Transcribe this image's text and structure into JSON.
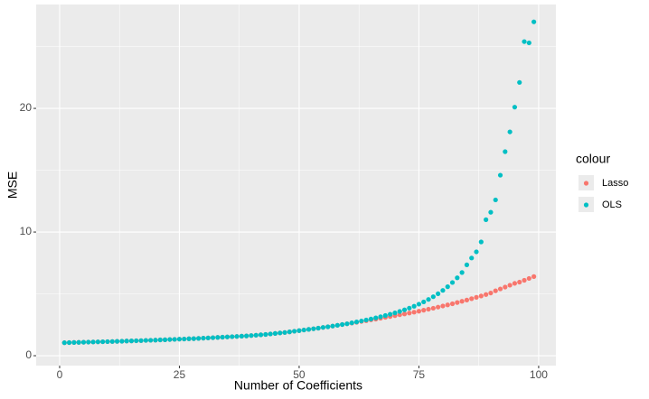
{
  "chart_data": {
    "type": "scatter",
    "x_label": "Number of Coefficients",
    "y_label": "MSE",
    "legend_title": "colour",
    "x": [
      1,
      2,
      3,
      4,
      5,
      6,
      7,
      8,
      9,
      10,
      11,
      12,
      13,
      14,
      15,
      16,
      17,
      18,
      19,
      20,
      21,
      22,
      23,
      24,
      25,
      26,
      27,
      28,
      29,
      30,
      31,
      32,
      33,
      34,
      35,
      36,
      37,
      38,
      39,
      40,
      41,
      42,
      43,
      44,
      45,
      46,
      47,
      48,
      49,
      50,
      51,
      52,
      53,
      54,
      55,
      56,
      57,
      58,
      59,
      60,
      61,
      62,
      63,
      64,
      65,
      66,
      67,
      68,
      69,
      70,
      71,
      72,
      73,
      74,
      75,
      76,
      77,
      78,
      79,
      80,
      81,
      82,
      83,
      84,
      85,
      86,
      87,
      88,
      89,
      90,
      91,
      92,
      93,
      94,
      95,
      96,
      97,
      98,
      99
    ],
    "series": [
      {
        "name": "Lasso",
        "color": "#F8766D",
        "values": [
          1.05,
          1.06,
          1.07,
          1.08,
          1.09,
          1.1,
          1.11,
          1.12,
          1.13,
          1.14,
          1.15,
          1.16,
          1.17,
          1.19,
          1.2,
          1.21,
          1.22,
          1.24,
          1.25,
          1.26,
          1.28,
          1.29,
          1.31,
          1.32,
          1.34,
          1.35,
          1.37,
          1.38,
          1.4,
          1.42,
          1.44,
          1.46,
          1.48,
          1.5,
          1.52,
          1.54,
          1.56,
          1.58,
          1.6,
          1.63,
          1.66,
          1.69,
          1.72,
          1.76,
          1.8,
          1.84,
          1.88,
          1.93,
          1.98,
          2.03,
          2.08,
          2.13,
          2.18,
          2.23,
          2.29,
          2.34,
          2.4,
          2.46,
          2.52,
          2.58,
          2.64,
          2.7,
          2.77,
          2.83,
          2.9,
          2.96,
          3.03,
          3.1,
          3.17,
          3.24,
          3.31,
          3.38,
          3.45,
          3.52,
          3.6,
          3.68,
          3.76,
          3.84,
          3.93,
          4.02,
          4.11,
          4.2,
          4.3,
          4.4,
          4.5,
          4.61,
          4.72,
          4.83,
          4.95,
          5.07,
          5.25,
          5.4,
          5.55,
          5.7,
          5.85,
          5.95,
          6.1,
          6.25,
          6.4
        ]
      },
      {
        "name": "OLS",
        "color": "#00BFC4",
        "values": [
          1.05,
          1.06,
          1.07,
          1.08,
          1.09,
          1.1,
          1.11,
          1.12,
          1.13,
          1.14,
          1.15,
          1.16,
          1.17,
          1.19,
          1.2,
          1.21,
          1.22,
          1.24,
          1.25,
          1.26,
          1.28,
          1.29,
          1.31,
          1.32,
          1.34,
          1.35,
          1.37,
          1.38,
          1.4,
          1.42,
          1.44,
          1.46,
          1.48,
          1.5,
          1.52,
          1.54,
          1.56,
          1.58,
          1.6,
          1.63,
          1.66,
          1.69,
          1.72,
          1.76,
          1.8,
          1.84,
          1.88,
          1.93,
          1.98,
          2.03,
          2.08,
          2.13,
          2.18,
          2.23,
          2.29,
          2.34,
          2.4,
          2.46,
          2.52,
          2.58,
          2.66,
          2.73,
          2.81,
          2.89,
          2.97,
          3.06,
          3.15,
          3.25,
          3.35,
          3.46,
          3.58,
          3.71,
          3.85,
          4.0,
          4.17,
          4.35,
          4.55,
          4.77,
          5.01,
          5.28,
          5.58,
          5.92,
          6.3,
          6.73,
          7.35,
          7.9,
          8.4,
          9.2,
          11.0,
          11.6,
          12.6,
          14.6,
          16.5,
          18.1,
          20.1,
          22.1,
          25.4,
          25.3,
          27.0
        ]
      }
    ],
    "xlim": [
      -4.9,
      103.6
    ],
    "ylim": [
      -0.8,
      28.4
    ],
    "xticks": [
      0,
      25,
      50,
      75,
      100
    ],
    "yticks": [
      0,
      10,
      20
    ],
    "grid": true
  }
}
